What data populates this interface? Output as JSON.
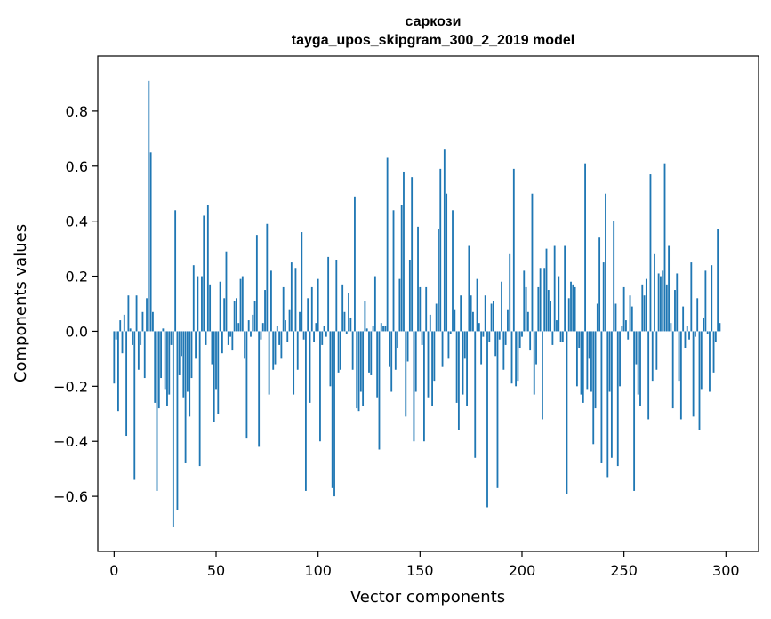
{
  "chart_data": {
    "type": "bar",
    "title": "саркози",
    "subtitle": "tayga_upos_skipgram_300_2_2019 model",
    "xlabel": "Vector components",
    "ylabel": "Components values",
    "xlim": [
      -8,
      316
    ],
    "ylim": [
      -0.8,
      1.0
    ],
    "xticks": [
      0,
      50,
      100,
      150,
      200,
      250,
      300
    ],
    "yticks": [
      -0.6,
      -0.4,
      -0.2,
      0.0,
      0.2,
      0.4,
      0.6,
      0.8
    ],
    "grid": false,
    "bar_color": "#1f77b4",
    "values": [
      -0.19,
      -0.03,
      -0.29,
      0.04,
      -0.08,
      0.06,
      -0.38,
      0.13,
      0.01,
      -0.05,
      -0.54,
      0.13,
      -0.14,
      -0.05,
      0.07,
      -0.17,
      0.12,
      0.91,
      0.65,
      0.07,
      -0.26,
      -0.58,
      -0.28,
      -0.17,
      0.01,
      -0.21,
      -0.27,
      -0.23,
      -0.05,
      -0.71,
      0.44,
      -0.65,
      -0.16,
      -0.09,
      -0.24,
      -0.48,
      -0.22,
      -0.31,
      -0.17,
      0.24,
      -0.1,
      0.2,
      -0.49,
      0.2,
      0.42,
      -0.05,
      0.46,
      0.17,
      -0.12,
      -0.33,
      -0.21,
      -0.3,
      0.18,
      -0.08,
      0.12,
      0.29,
      -0.05,
      -0.02,
      -0.07,
      0.11,
      0.12,
      0.03,
      0.19,
      0.2,
      -0.1,
      -0.39,
      0.04,
      -0.02,
      0.06,
      0.11,
      0.35,
      -0.42,
      -0.03,
      0.03,
      0.15,
      0.39,
      -0.23,
      0.22,
      -0.14,
      -0.12,
      0.02,
      -0.05,
      -0.1,
      0.16,
      0.04,
      -0.04,
      0.08,
      0.25,
      -0.23,
      0.23,
      -0.14,
      0.07,
      0.36,
      -0.03,
      -0.58,
      0.12,
      -0.26,
      0.16,
      -0.04,
      0.03,
      0.19,
      -0.4,
      -0.05,
      0.02,
      -0.02,
      0.27,
      -0.2,
      -0.57,
      -0.6,
      0.26,
      -0.15,
      -0.14,
      0.17,
      0.07,
      -0.01,
      0.14,
      0.05,
      -0.14,
      0.49,
      -0.28,
      -0.29,
      -0.22,
      -0.27,
      0.11,
      0.01,
      -0.15,
      -0.16,
      0.02,
      0.2,
      -0.24,
      -0.43,
      0.03,
      0.02,
      0.02,
      0.63,
      -0.13,
      -0.22,
      0.44,
      -0.14,
      -0.06,
      0.19,
      0.46,
      0.58,
      -0.31,
      -0.11,
      0.26,
      0.56,
      -0.4,
      -0.22,
      0.38,
      0.16,
      -0.05,
      -0.4,
      0.16,
      -0.24,
      0.06,
      -0.27,
      -0.18,
      0.1,
      0.37,
      0.59,
      -0.13,
      0.66,
      0.5,
      -0.1,
      -0.01,
      0.44,
      0.08,
      -0.26,
      -0.36,
      0.13,
      -0.23,
      -0.1,
      -0.27,
      0.31,
      0.13,
      0.07,
      -0.46,
      0.19,
      0.03,
      -0.12,
      -0.02,
      0.13,
      -0.64,
      -0.04,
      0.1,
      0.11,
      -0.09,
      -0.57,
      -0.03,
      0.18,
      -0.14,
      -0.05,
      0.08,
      0.28,
      -0.19,
      0.59,
      -0.2,
      -0.18,
      -0.06,
      -0.02,
      0.22,
      0.16,
      0.07,
      -0.07,
      0.5,
      -0.23,
      -0.12,
      0.16,
      0.23,
      -0.32,
      0.23,
      0.3,
      0.15,
      0.11,
      -0.05,
      0.31,
      0.04,
      0.2,
      -0.04,
      -0.04,
      0.31,
      -0.59,
      0.12,
      0.18,
      0.17,
      0.16,
      -0.2,
      -0.06,
      -0.23,
      -0.26,
      0.61,
      -0.21,
      -0.1,
      -0.22,
      -0.41,
      -0.28,
      0.1,
      0.34,
      -0.48,
      0.25,
      0.5,
      -0.53,
      -0.22,
      -0.46,
      0.4,
      0.1,
      -0.49,
      -0.2,
      0.02,
      0.16,
      0.04,
      -0.03,
      0.13,
      0.09,
      -0.58,
      -0.12,
      -0.23,
      -0.27,
      0.17,
      0.13,
      0.19,
      -0.32,
      0.57,
      -0.18,
      0.28,
      -0.14,
      0.21,
      0.2,
      0.22,
      0.61,
      0.17,
      0.31,
      0.03,
      -0.28,
      0.15,
      0.21,
      -0.18,
      -0.32,
      0.09,
      -0.06,
      0.02,
      -0.03,
      0.25,
      -0.31,
      -0.02,
      0.12,
      -0.36,
      -0.21,
      0.05,
      0.22,
      -0.01,
      -0.22,
      0.24,
      -0.15,
      -0.04,
      0.37,
      0.03
    ]
  }
}
